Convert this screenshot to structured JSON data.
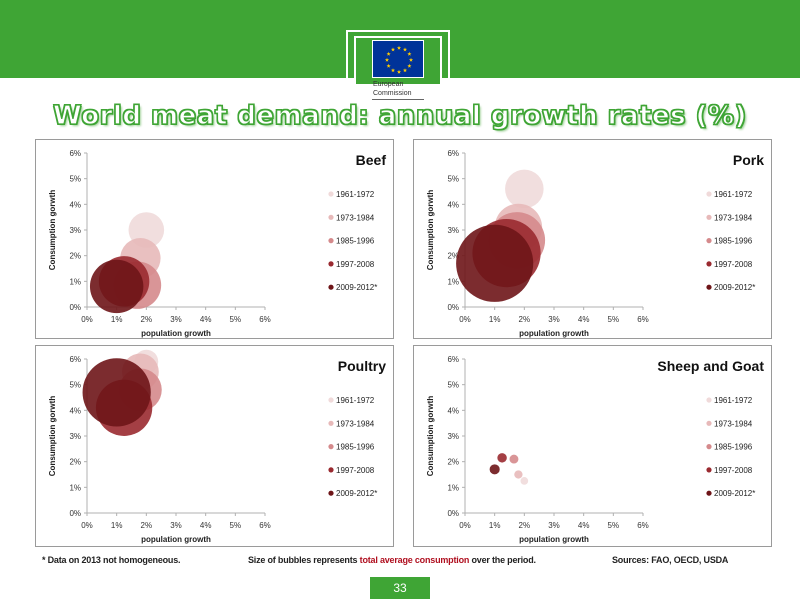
{
  "header": {
    "commission_name": [
      "European",
      "Commission"
    ],
    "colors": {
      "banner": "#3fa535",
      "flag": "#003399",
      "stars": "#ffcc00"
    },
    "icons": [
      "eu-flag-logo",
      "berlaymont-building-logo"
    ]
  },
  "slide": {
    "title": "World meat demand: annual growth rates (%)",
    "page_number": "33"
  },
  "footer": {
    "note": "* Data on 2013 not homogeneous.",
    "bubble_note_pre": "Size of bubbles represents ",
    "bubble_note_highlight": "total average consumption",
    "bubble_note_post": " over the period.",
    "sources": "Sources: FAO, OECD, USDA"
  },
  "chart_data": [
    {
      "type": "scatter",
      "title": "Beef",
      "xlabel": "population growth",
      "ylabel": "Consumption gorwth",
      "xlim": [
        0,
        6
      ],
      "ylim": [
        0,
        6
      ],
      "x_ticks": [
        "0%",
        "1%",
        "2%",
        "3%",
        "4%",
        "5%",
        "6%"
      ],
      "y_ticks": [
        "0%",
        "1%",
        "2%",
        "3%",
        "4%",
        "5%",
        "6%"
      ],
      "legend_position": "right",
      "series": [
        {
          "name": "1961-1972",
          "color": "#f0dada",
          "x": 2.0,
          "y": 3.0,
          "size": 0.6
        },
        {
          "name": "1973-1984",
          "color": "#e7b9b9",
          "x": 1.8,
          "y": 1.9,
          "size": 0.68
        },
        {
          "name": "1985-1996",
          "color": "#d58a8c",
          "x": 1.7,
          "y": 0.85,
          "size": 0.8
        },
        {
          "name": "1997-2008",
          "color": "#9a2a30",
          "x": 1.25,
          "y": 1.0,
          "size": 0.85
        },
        {
          "name": "2009-2012*",
          "color": "#6e1518",
          "x": 1.0,
          "y": 0.8,
          "size": 0.9
        }
      ]
    },
    {
      "type": "scatter",
      "title": "Pork",
      "xlabel": "population growth",
      "ylabel": "Consumption gorwth",
      "xlim": [
        0,
        6
      ],
      "ylim": [
        0,
        6
      ],
      "x_ticks": [
        "0%",
        "1%",
        "2%",
        "3%",
        "4%",
        "5%",
        "6%"
      ],
      "y_ticks": [
        "0%",
        "1%",
        "2%",
        "3%",
        "4%",
        "5%",
        "6%"
      ],
      "legend_position": "right",
      "series": [
        {
          "name": "1961-1972",
          "color": "#f0dada",
          "x": 2.0,
          "y": 4.6,
          "size": 0.65
        },
        {
          "name": "1973-1984",
          "color": "#e7b9b9",
          "x": 1.8,
          "y": 3.1,
          "size": 0.8
        },
        {
          "name": "1985-1996",
          "color": "#d58a8c",
          "x": 1.75,
          "y": 2.6,
          "size": 0.95
        },
        {
          "name": "1997-2008",
          "color": "#9a2a30",
          "x": 1.4,
          "y": 2.1,
          "size": 1.15
        },
        {
          "name": "2009-2012*",
          "color": "#6e1518",
          "x": 1.0,
          "y": 1.7,
          "size": 1.3
        }
      ]
    },
    {
      "type": "scatter",
      "title": "Poultry",
      "xlabel": "population growth",
      "ylabel": "Consumption gorwth",
      "xlim": [
        0,
        6
      ],
      "ylim": [
        0,
        6
      ],
      "x_ticks": [
        "0%",
        "1%",
        "2%",
        "3%",
        "4%",
        "5%",
        "6%"
      ],
      "y_ticks": [
        "0%",
        "1%",
        "2%",
        "3%",
        "4%",
        "5%",
        "6%"
      ],
      "legend_position": "right",
      "series": [
        {
          "name": "1961-1972",
          "color": "#f0dada",
          "x": 2.0,
          "y": 5.9,
          "size": 0.4
        },
        {
          "name": "1973-1984",
          "color": "#e7b9b9",
          "x": 1.8,
          "y": 5.5,
          "size": 0.62
        },
        {
          "name": "1985-1996",
          "color": "#d58a8c",
          "x": 1.8,
          "y": 4.8,
          "size": 0.72
        },
        {
          "name": "1997-2008",
          "color": "#9a2a30",
          "x": 1.25,
          "y": 4.1,
          "size": 0.95
        },
        {
          "name": "2009-2012*",
          "color": "#6e1518",
          "x": 1.0,
          "y": 4.7,
          "size": 1.15
        }
      ]
    },
    {
      "type": "scatter",
      "title": "Sheep and Goat",
      "xlabel": "population growth",
      "ylabel": "Consumption gorwth",
      "xlim": [
        0,
        6
      ],
      "ylim": [
        0,
        6
      ],
      "x_ticks": [
        "0%",
        "1%",
        "2%",
        "3%",
        "4%",
        "5%",
        "6%"
      ],
      "y_ticks": [
        "0%",
        "1%",
        "2%",
        "3%",
        "4%",
        "5%",
        "6%"
      ],
      "legend_position": "right",
      "series": [
        {
          "name": "1961-1972",
          "color": "#f0dada",
          "x": 2.0,
          "y": 1.25,
          "size": 0.13
        },
        {
          "name": "1973-1984",
          "color": "#e7b9b9",
          "x": 1.8,
          "y": 1.5,
          "size": 0.14
        },
        {
          "name": "1985-1996",
          "color": "#d58a8c",
          "x": 1.65,
          "y": 2.1,
          "size": 0.15
        },
        {
          "name": "1997-2008",
          "color": "#9a2a30",
          "x": 1.25,
          "y": 2.15,
          "size": 0.16
        },
        {
          "name": "2009-2012*",
          "color": "#6e1518",
          "x": 1.0,
          "y": 1.7,
          "size": 0.17
        }
      ]
    }
  ]
}
